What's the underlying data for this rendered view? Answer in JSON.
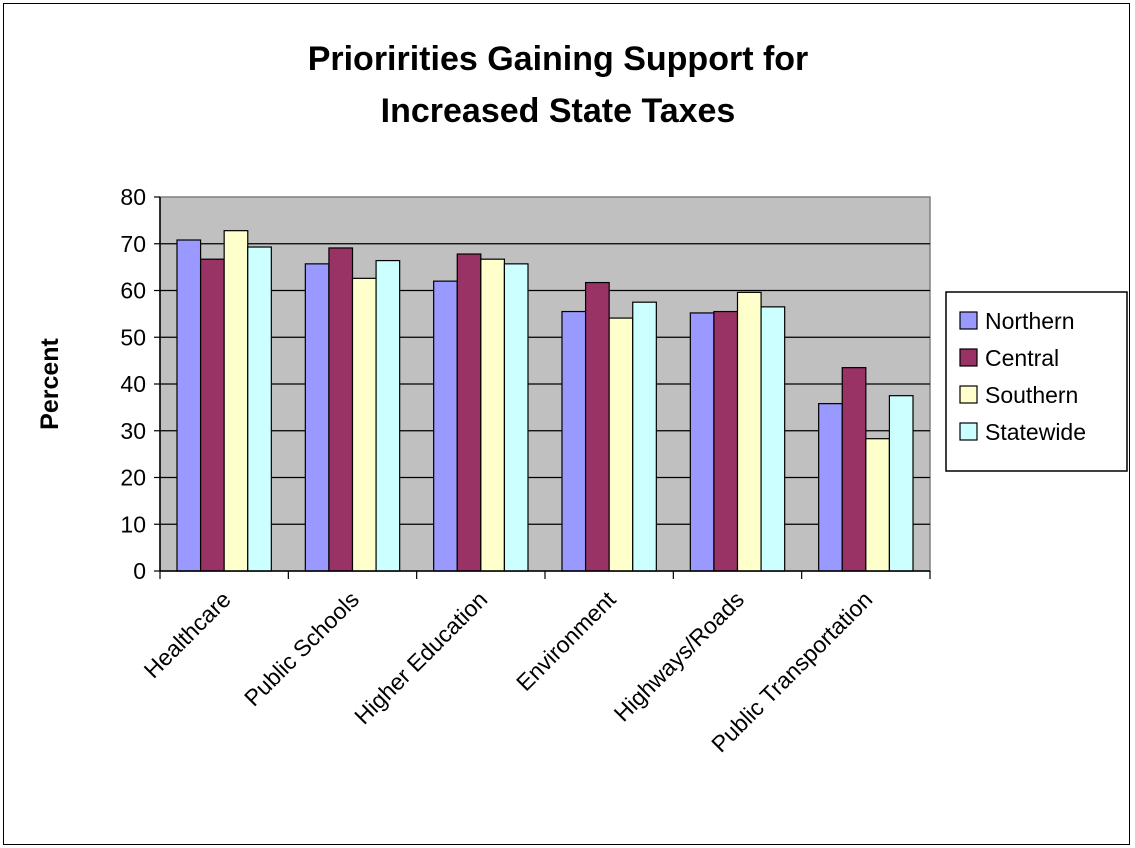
{
  "chart_data": {
    "type": "bar",
    "title_lines": [
      "Prioririties Gaining Support for",
      "Increased State Taxes"
    ],
    "xlabel": "",
    "ylabel": "Percent",
    "ylim": [
      0,
      80
    ],
    "yticks": [
      "0",
      "10",
      "20",
      "30",
      "40",
      "50",
      "60",
      "70",
      "80"
    ],
    "grid": true,
    "legend_position": "right",
    "categories": [
      "Healthcare",
      "Public Schools",
      "Higher Education",
      "Environment",
      "Highways/Roads",
      "Public Transportation"
    ],
    "series": [
      {
        "name": "Northern",
        "color": "#9999ff",
        "values": [
          70.8,
          65.7,
          62.0,
          55.5,
          55.2,
          35.8
        ]
      },
      {
        "name": "Central",
        "color": "#993366",
        "values": [
          66.7,
          69.1,
          67.8,
          61.7,
          55.5,
          43.5
        ]
      },
      {
        "name": "Southern",
        "color": "#ffffcc",
        "values": [
          72.8,
          62.6,
          66.7,
          54.1,
          59.6,
          28.3
        ]
      },
      {
        "name": "Statewide",
        "color": "#ccffff",
        "values": [
          69.3,
          66.4,
          65.7,
          57.5,
          56.5,
          37.5
        ]
      }
    ],
    "plot_background": "#c0c0c0"
  }
}
